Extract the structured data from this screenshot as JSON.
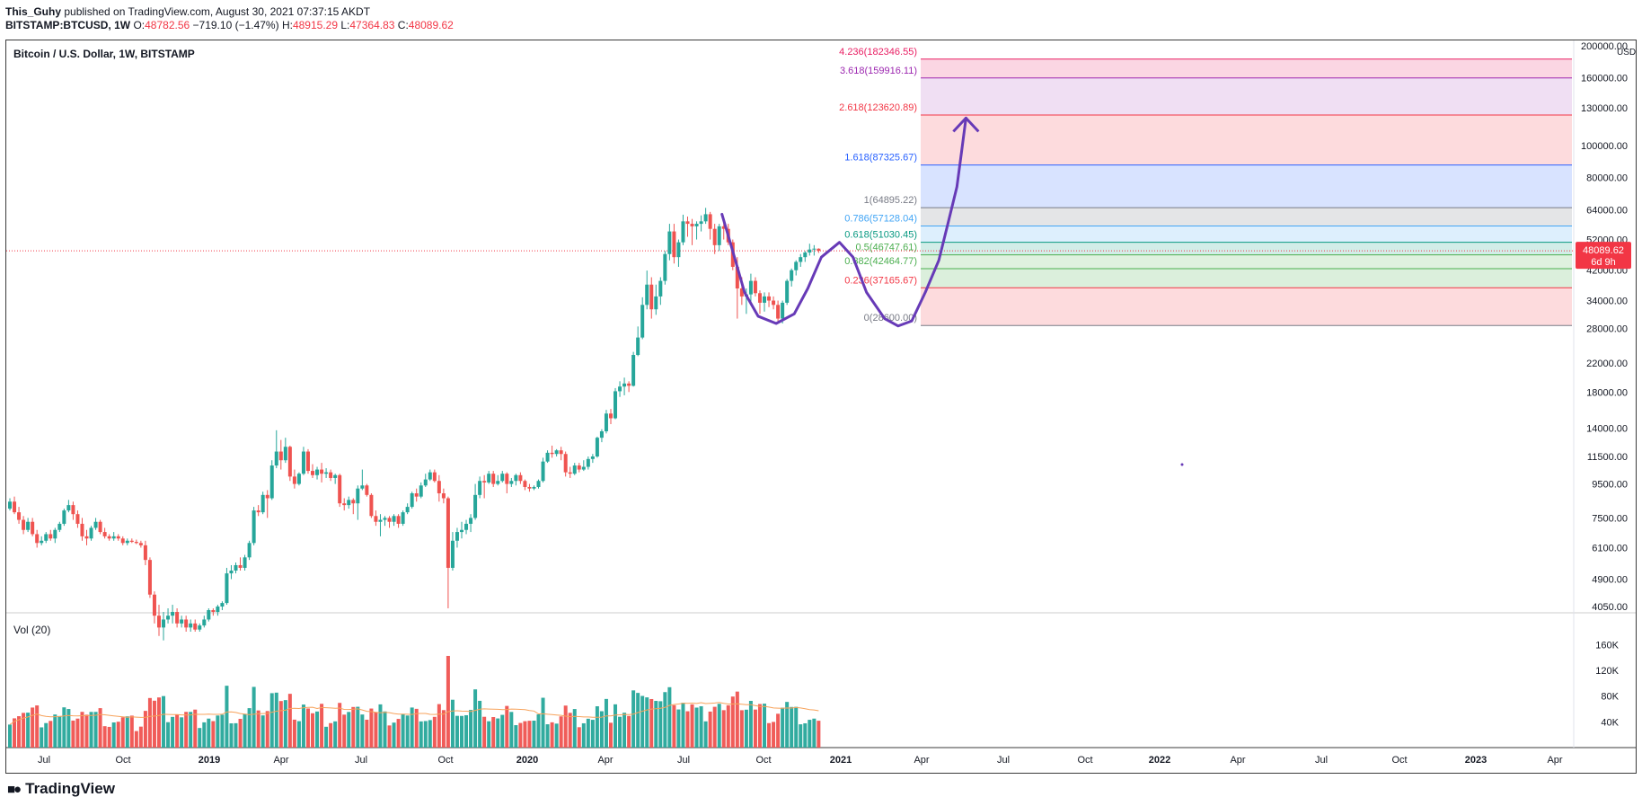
{
  "header": {
    "line1": {
      "author": "This_Guhy",
      "rest": " published on TradingView.com, August 30, 2021 07:37:15 AKDT"
    },
    "line2": {
      "symbol": "BITSTAMP:BTCUSD, 1W",
      "open": "48782.56",
      "high": "48915.29",
      "low": "47364.83",
      "close": "48089.62",
      "change": "−719.10 (−1.47%)"
    }
  },
  "chart_data": {
    "type": "candlestick",
    "title": "Bitcoin / U.S. Dollar, 1W, BITSTAMP",
    "currency": "USD",
    "scale": "logarithmic",
    "last_price": "48089.62",
    "countdown": "6d 9h",
    "y_ticks": [
      "200000.00",
      "160000.00",
      "130000.00",
      "100000.00",
      "80000.00",
      "64000.00",
      "52000.00",
      "42000.00",
      "34000.00",
      "28000.00",
      "22000.00",
      "18000.00",
      "14000.00",
      "11500.00",
      "9500.00",
      "7500.00",
      "6100.00",
      "4900.00",
      "4050.00"
    ],
    "x_ticks": [
      "Jul",
      "Oct",
      "2019",
      "Apr",
      "Jul",
      "Oct",
      "2020",
      "Apr",
      "Jul",
      "Oct",
      "2021",
      "Apr",
      "Jul",
      "Oct",
      "2022",
      "Apr",
      "Jul",
      "Oct",
      "2023",
      "Apr"
    ],
    "candles_weekly": [
      [
        8000,
        8600,
        7900,
        8400
      ],
      [
        8400,
        8700,
        7700,
        7800
      ],
      [
        7800,
        8100,
        7200,
        7400
      ],
      [
        7400,
        7600,
        6700,
        6900
      ],
      [
        6900,
        7500,
        6800,
        7300
      ],
      [
        7300,
        7500,
        6600,
        6700
      ],
      [
        6700,
        6900,
        6100,
        6300
      ],
      [
        6300,
        6600,
        6200,
        6400
      ],
      [
        6400,
        6800,
        6300,
        6700
      ],
      [
        6700,
        6900,
        6400,
        6500
      ],
      [
        6500,
        7000,
        6300,
        6900
      ],
      [
        6900,
        7300,
        6800,
        7200
      ],
      [
        7200,
        8000,
        7100,
        7900
      ],
      [
        7900,
        8500,
        7800,
        8200
      ],
      [
        8200,
        8400,
        7400,
        7700
      ],
      [
        7700,
        7900,
        7000,
        7200
      ],
      [
        7200,
        7500,
        6400,
        6600
      ],
      [
        6600,
        6900,
        6200,
        6500
      ],
      [
        6500,
        7100,
        6400,
        7000
      ],
      [
        7000,
        7500,
        6900,
        7300
      ],
      [
        7300,
        7400,
        6700,
        6800
      ],
      [
        6800,
        7000,
        6500,
        6600
      ],
      [
        6600,
        6700,
        6400,
        6500
      ],
      [
        6500,
        6800,
        6400,
        6600
      ],
      [
        6600,
        6700,
        6400,
        6500
      ],
      [
        6500,
        6600,
        6200,
        6300
      ],
      [
        6300,
        6500,
        6200,
        6400
      ],
      [
        6400,
        6500,
        6300,
        6350
      ],
      [
        6350,
        6450,
        6250,
        6300
      ],
      [
        6300,
        6400,
        6100,
        6200
      ],
      [
        6200,
        6400,
        5400,
        5600
      ],
      [
        5600,
        5700,
        4300,
        4400
      ],
      [
        4400,
        4500,
        3600,
        3800
      ],
      [
        3800,
        4100,
        3300,
        3500
      ],
      [
        3500,
        3900,
        3200,
        3700
      ],
      [
        3700,
        4000,
        3600,
        3800
      ],
      [
        3800,
        4100,
        3600,
        3900
      ],
      [
        3900,
        4000,
        3500,
        3600
      ],
      [
        3600,
        3800,
        3500,
        3700
      ],
      [
        3700,
        3800,
        3400,
        3500
      ],
      [
        3500,
        3700,
        3400,
        3600
      ],
      [
        3600,
        3700,
        3400,
        3450
      ],
      [
        3450,
        3600,
        3400,
        3550
      ],
      [
        3550,
        3800,
        3500,
        3700
      ],
      [
        3700,
        4000,
        3650,
        3950
      ],
      [
        3950,
        4000,
        3800,
        3900
      ],
      [
        3900,
        4100,
        3800,
        4050
      ],
      [
        4050,
        4200,
        3950,
        4150
      ],
      [
        4150,
        5300,
        4100,
        5100
      ],
      [
        5100,
        5400,
        4900,
        5200
      ],
      [
        5200,
        5500,
        5100,
        5400
      ],
      [
        5400,
        5700,
        5200,
        5300
      ],
      [
        5300,
        5800,
        5200,
        5700
      ],
      [
        5700,
        6400,
        5600,
        6300
      ],
      [
        6300,
        8100,
        6200,
        7900
      ],
      [
        7900,
        8200,
        7600,
        7800
      ],
      [
        7800,
        9000,
        7700,
        8800
      ],
      [
        8800,
        9100,
        7500,
        8600
      ],
      [
        8600,
        11200,
        8500,
        10800
      ],
      [
        10800,
        13800,
        10600,
        11900
      ],
      [
        11900,
        12900,
        10500,
        11200
      ],
      [
        11200,
        13100,
        11000,
        12300
      ],
      [
        12300,
        12400,
        9700,
        10000
      ],
      [
        10000,
        10500,
        9200,
        9500
      ],
      [
        9500,
        10300,
        9400,
        10200
      ],
      [
        10200,
        12300,
        10100,
        11900
      ],
      [
        11900,
        12100,
        10200,
        10400
      ],
      [
        10400,
        10900,
        9900,
        10100
      ],
      [
        10100,
        10700,
        9800,
        10500
      ],
      [
        10500,
        11000,
        9600,
        10200
      ],
      [
        10200,
        10600,
        9900,
        10300
      ],
      [
        10300,
        10500,
        9700,
        9900
      ],
      [
        9900,
        10200,
        9500,
        10100
      ],
      [
        10100,
        10200,
        8100,
        8300
      ],
      [
        8300,
        8600,
        7900,
        8200
      ],
      [
        8200,
        8700,
        8000,
        8500
      ],
      [
        8500,
        8600,
        7700,
        8300
      ],
      [
        8300,
        9400,
        7400,
        9200
      ],
      [
        9200,
        10500,
        9100,
        9400
      ],
      [
        9400,
        9500,
        8700,
        8800
      ],
      [
        8800,
        8900,
        7500,
        7600
      ],
      [
        7600,
        7900,
        7100,
        7300
      ],
      [
        7300,
        7700,
        6600,
        7400
      ],
      [
        7400,
        7600,
        7100,
        7500
      ],
      [
        7500,
        7600,
        7000,
        7300
      ],
      [
        7300,
        7700,
        7100,
        7600
      ],
      [
        7600,
        7700,
        7000,
        7200
      ],
      [
        7200,
        7900,
        7100,
        7800
      ],
      [
        7800,
        8300,
        7700,
        8100
      ],
      [
        8100,
        9000,
        8000,
        8900
      ],
      [
        8900,
        9200,
        8400,
        8700
      ],
      [
        8700,
        9600,
        8600,
        9400
      ],
      [
        9400,
        10200,
        9300,
        9800
      ],
      [
        9800,
        10500,
        9700,
        10300
      ],
      [
        10300,
        10500,
        9600,
        9700
      ],
      [
        9700,
        10100,
        8400,
        8900
      ],
      [
        8900,
        9200,
        8300,
        8600
      ],
      [
        8600,
        8700,
        4000,
        5300
      ],
      [
        5300,
        6800,
        5200,
        6400
      ],
      [
        6400,
        7000,
        6100,
        6800
      ],
      [
        6800,
        7300,
        6500,
        6900
      ],
      [
        6900,
        7400,
        6700,
        7200
      ],
      [
        7200,
        7700,
        6800,
        7500
      ],
      [
        7500,
        9500,
        7400,
        8800
      ],
      [
        8800,
        10000,
        8600,
        9700
      ],
      [
        9700,
        10100,
        8600,
        9600
      ],
      [
        9600,
        10400,
        9500,
        10200
      ],
      [
        10200,
        10400,
        9300,
        9500
      ],
      [
        9500,
        10100,
        9400,
        9700
      ],
      [
        9700,
        10400,
        9600,
        10200
      ],
      [
        10200,
        10300,
        8900,
        9500
      ],
      [
        9500,
        9900,
        9300,
        9700
      ],
      [
        9700,
        10200,
        9400,
        10100
      ],
      [
        10100,
        10300,
        9500,
        9700
      ],
      [
        9700,
        9800,
        9100,
        9300
      ],
      [
        9300,
        9500,
        9000,
        9200
      ],
      [
        9200,
        9400,
        9100,
        9300
      ],
      [
        9300,
        9800,
        9200,
        9700
      ],
      [
        9700,
        11400,
        9600,
        11100
      ],
      [
        11100,
        12000,
        11000,
        11800
      ],
      [
        11800,
        12400,
        11400,
        11700
      ],
      [
        11700,
        12100,
        11500,
        12000
      ],
      [
        12000,
        12300,
        11200,
        11700
      ],
      [
        11700,
        11900,
        10000,
        10300
      ],
      [
        10300,
        10700,
        9900,
        10200
      ],
      [
        10200,
        11000,
        10100,
        10800
      ],
      [
        10800,
        11000,
        10300,
        10500
      ],
      [
        10500,
        11200,
        10400,
        10700
      ],
      [
        10700,
        11500,
        10500,
        11300
      ],
      [
        11300,
        11700,
        11000,
        11500
      ],
      [
        11500,
        13200,
        11400,
        13100
      ],
      [
        13100,
        13900,
        12700,
        13700
      ],
      [
        13700,
        15900,
        13500,
        15500
      ],
      [
        15500,
        16000,
        14400,
        15000
      ],
      [
        15000,
        18500,
        14900,
        18100
      ],
      [
        18100,
        19400,
        17400,
        18700
      ],
      [
        18700,
        19900,
        17600,
        19100
      ],
      [
        19100,
        19400,
        18000,
        18800
      ],
      [
        18800,
        23800,
        18700,
        23300
      ],
      [
        23300,
        28400,
        23100,
        26300
      ],
      [
        26300,
        34800,
        26000,
        33000
      ],
      [
        33000,
        41900,
        32000,
        38000
      ],
      [
        38000,
        40000,
        30000,
        32000
      ],
      [
        32000,
        38000,
        30800,
        35000
      ],
      [
        35000,
        40000,
        33000,
        39000
      ],
      [
        39000,
        48000,
        38000,
        47000
      ],
      [
        47000,
        58000,
        45000,
        55000
      ],
      [
        55000,
        58000,
        44000,
        46000
      ],
      [
        46000,
        52000,
        43000,
        51000
      ],
      [
        51000,
        61800,
        50000,
        59000
      ],
      [
        59000,
        61000,
        53000,
        58000
      ],
      [
        58000,
        60000,
        50000,
        57000
      ],
      [
        57000,
        59000,
        52000,
        58000
      ],
      [
        58000,
        61500,
        55000,
        59000
      ],
      [
        59000,
        64800,
        58000,
        62000
      ],
      [
        62000,
        63000,
        52000,
        56000
      ],
      [
        56000,
        58000,
        47000,
        50000
      ],
      [
        50000,
        58000,
        48000,
        57000
      ],
      [
        57000,
        59000,
        52000,
        56000
      ],
      [
        56000,
        58000,
        50000,
        51000
      ],
      [
        51000,
        52000,
        42000,
        43000
      ],
      [
        43000,
        46000,
        30000,
        37000
      ],
      [
        37000,
        40000,
        33000,
        35000
      ],
      [
        35000,
        37000,
        31000,
        35500
      ],
      [
        35500,
        41000,
        33000,
        39000
      ],
      [
        39000,
        40000,
        35000,
        35800
      ],
      [
        35800,
        36500,
        31000,
        33500
      ],
      [
        33500,
        36000,
        31500,
        35000
      ],
      [
        35000,
        36000,
        32500,
        34000
      ],
      [
        34000,
        35000,
        32000,
        33000
      ],
      [
        33000,
        34000,
        29500,
        30000
      ],
      [
        30000,
        34000,
        29000,
        33500
      ],
      [
        33500,
        39500,
        33000,
        39000
      ],
      [
        39000,
        42500,
        37500,
        42000
      ],
      [
        42000,
        45000,
        40500,
        44500
      ],
      [
        44500,
        47000,
        43000,
        46000
      ],
      [
        46000,
        48000,
        44500,
        47500
      ],
      [
        47500,
        50500,
        46500,
        48500
      ],
      [
        48500,
        50000,
        46500,
        48800
      ],
      [
        48782.56,
        48915.29,
        47364.83,
        48089.62
      ]
    ],
    "volume": {
      "label": "Vol (20)",
      "y_ticks": [
        "160K",
        "120K",
        "80K",
        "40K"
      ]
    },
    "fib_levels": [
      {
        "ratio": "4.236",
        "label": "4.236(182346.55)",
        "price": 182346.55,
        "color": "#e91e63"
      },
      {
        "ratio": "3.618",
        "label": "3.618(159916.11)",
        "price": 159916.11,
        "color": "#9c27b0"
      },
      {
        "ratio": "2.618",
        "label": "2.618(123620.89)",
        "price": 123620.89,
        "color": "#f23645"
      },
      {
        "ratio": "1.618",
        "label": "1.618(87325.67)",
        "price": 87325.67,
        "color": "#2962ff"
      },
      {
        "ratio": "1",
        "label": "1(64895.22)",
        "price": 64895.22,
        "color": "#787b86"
      },
      {
        "ratio": "0.786",
        "label": "0.786(57128.04)",
        "price": 57128.04,
        "color": "#42a5f5"
      },
      {
        "ratio": "0.618",
        "label": "0.618(51030.45)",
        "price": 51030.45,
        "color": "#089981"
      },
      {
        "ratio": "0.5",
        "label": "0.5(46747.61)",
        "price": 46747.61,
        "color": "#4caf50"
      },
      {
        "ratio": "0.382",
        "label": "0.382(42464.77)",
        "price": 42464.77,
        "color": "#4caf50"
      },
      {
        "ratio": "0.236",
        "label": "0.236(37165.67)",
        "price": 37165.67,
        "color": "#f23645"
      },
      {
        "ratio": "0",
        "label": "0(28600.00)",
        "price": 28600.0,
        "color": "#787b86"
      }
    ],
    "projection": {
      "description": "hand-drawn projection path",
      "color": "#673ab7",
      "points_price": [
        [
          158,
          62000
        ],
        [
          160,
          50000
        ],
        [
          163,
          36000
        ],
        [
          166,
          30500
        ],
        [
          170,
          29000
        ],
        [
          174,
          31000
        ],
        [
          177,
          37000
        ],
        [
          180,
          46000
        ],
        [
          184,
          51000
        ],
        [
          187,
          46000
        ],
        [
          190,
          36000
        ],
        [
          194,
          30000
        ],
        [
          197,
          28500
        ],
        [
          200,
          29500
        ],
        [
          203,
          36000
        ],
        [
          206,
          45000
        ],
        [
          208,
          58000
        ],
        [
          210,
          75000
        ],
        [
          211,
          95000
        ],
        [
          212,
          121000
        ]
      ]
    },
    "colors": {
      "up": "#26a69a",
      "down": "#ef5350",
      "volume_ma": "#f7a35c",
      "price_line": "#f23645",
      "grid": "#ffffff",
      "border": "#3b3b3b"
    }
  },
  "branding": {
    "logo_text": "TradingView"
  }
}
